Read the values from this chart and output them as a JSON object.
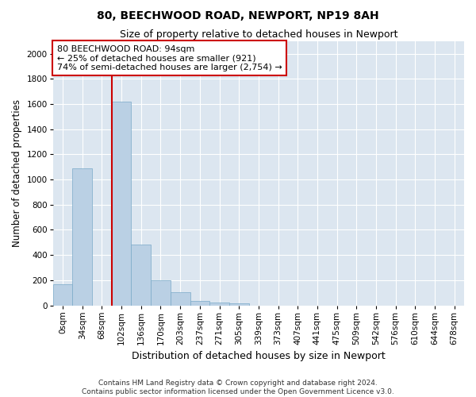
{
  "title": "80, BEECHWOOD ROAD, NEWPORT, NP19 8AH",
  "subtitle": "Size of property relative to detached houses in Newport",
  "xlabel": "Distribution of detached houses by size in Newport",
  "ylabel": "Number of detached properties",
  "categories": [
    "0sqm",
    "34sqm",
    "68sqm",
    "102sqm",
    "136sqm",
    "170sqm",
    "203sqm",
    "237sqm",
    "271sqm",
    "305sqm",
    "339sqm",
    "373sqm",
    "407sqm",
    "441sqm",
    "475sqm",
    "509sqm",
    "542sqm",
    "576sqm",
    "610sqm",
    "644sqm",
    "678sqm"
  ],
  "bar_values": [
    165,
    1090,
    0,
    1620,
    480,
    200,
    105,
    38,
    22,
    15,
    0,
    0,
    0,
    0,
    0,
    0,
    0,
    0,
    0,
    0,
    0
  ],
  "bar_color": "#bad0e4",
  "bar_edge_color": "#7aaac8",
  "vline_x_index": 2.5,
  "vline_color": "#cc0000",
  "annotation_text": "80 BEECHWOOD ROAD: 94sqm\n← 25% of detached houses are smaller (921)\n74% of semi-detached houses are larger (2,754) →",
  "annotation_box_color": "#ffffff",
  "annotation_box_edge": "#cc0000",
  "ylim": [
    0,
    2100
  ],
  "yticks": [
    0,
    200,
    400,
    600,
    800,
    1000,
    1200,
    1400,
    1600,
    1800,
    2000
  ],
  "background_color": "#dce6f0",
  "footer_line1": "Contains HM Land Registry data © Crown copyright and database right 2024.",
  "footer_line2": "Contains public sector information licensed under the Open Government Licence v3.0.",
  "title_fontsize": 10,
  "subtitle_fontsize": 9,
  "tick_fontsize": 7.5,
  "ylabel_fontsize": 8.5,
  "xlabel_fontsize": 9,
  "footer_fontsize": 6.5
}
